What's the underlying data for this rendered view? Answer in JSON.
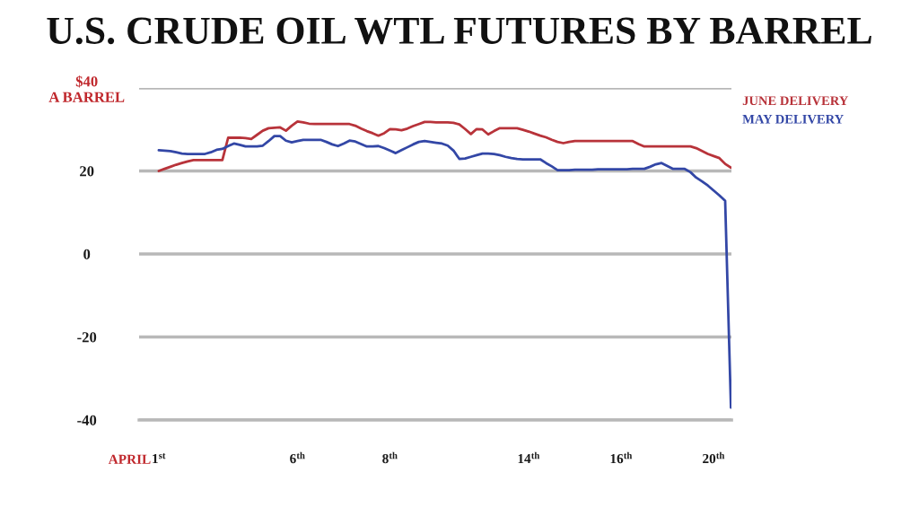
{
  "chart_data": {
    "type": "line",
    "title": "U.S. CRUDE OIL WTL FUTURES BY BARREL",
    "xlabel": "APRIL",
    "categories": [
      "1$^{st}$",
      null,
      null,
      null,
      null,
      null,
      null,
      null,
      null,
      null,
      null,
      null,
      null,
      null,
      null,
      null,
      null,
      null,
      null,
      null,
      null,
      null,
      null,
      null,
      "6$^{th}$",
      null,
      null,
      null,
      null,
      null,
      null,
      null,
      null,
      null,
      null,
      null,
      null,
      null,
      null,
      null,
      "8$^{th}$",
      null,
      null,
      null,
      null,
      null,
      null,
      null,
      null,
      null,
      null,
      null,
      null,
      null,
      null,
      null,
      null,
      null,
      null,
      null,
      null,
      null,
      null,
      null,
      "14$^{th}$",
      null,
      null,
      null,
      null,
      null,
      null,
      null,
      null,
      null,
      null,
      null,
      null,
      null,
      null,
      null,
      "16$^{th}$",
      null,
      null,
      null,
      null,
      null,
      null,
      null,
      null,
      null,
      null,
      null,
      null,
      null,
      null,
      null,
      "20$^{th}$",
      null,
      null,
      null
    ],
    "ylim": [
      -40,
      40
    ],
    "yticks": [
      -40,
      -20,
      0,
      20,
      {
        "value": 40,
        "label": "$40\nA BARREL"
      }
    ],
    "grid": "y",
    "legend": "top right",
    "line_style": "solid",
    "marker": "none",
    "series": [
      {
        "name": "JUNE DELIVERY",
        "color": "#b8333a",
        "values": [
          20.0,
          20.5,
          21.0,
          21.5,
          21.9,
          22.3,
          22.6,
          22.6,
          22.6,
          22.6,
          22.6,
          22.6,
          28.0,
          28.0,
          28.0,
          27.9,
          27.7,
          28.7,
          29.7,
          30.3,
          30.4,
          30.5,
          29.7,
          30.9,
          31.9,
          31.7,
          31.4,
          31.3,
          31.3,
          31.3,
          31.3,
          31.3,
          31.3,
          31.3,
          30.9,
          30.2,
          29.6,
          29.1,
          28.5,
          29.1,
          30.1,
          30.0,
          29.8,
          30.2,
          30.8,
          31.3,
          31.8,
          31.8,
          31.7,
          31.7,
          31.7,
          31.6,
          31.2,
          30.1,
          28.9,
          30.1,
          30.0,
          28.8,
          29.6,
          30.3,
          30.3,
          30.3,
          30.3,
          29.9,
          29.5,
          29.0,
          28.5,
          28.1,
          27.5,
          27.0,
          26.7,
          27.0,
          27.2,
          27.2,
          27.2,
          27.2,
          27.2,
          27.2,
          27.2,
          27.2,
          27.2,
          27.2,
          27.2,
          26.5,
          25.9,
          25.9,
          25.9,
          25.9,
          25.9,
          25.9,
          25.9,
          25.9,
          25.9,
          25.5,
          24.8,
          24.1,
          23.6,
          23.1,
          21.7,
          20.8
        ]
      },
      {
        "name": "MAY DELIVERY",
        "color": "#3347a6",
        "values": [
          25.0,
          24.9,
          24.8,
          24.5,
          24.2,
          24.1,
          24.1,
          24.1,
          24.1,
          24.5,
          25.1,
          25.3,
          26.0,
          26.6,
          26.3,
          25.9,
          25.9,
          25.9,
          26.1,
          27.2,
          28.4,
          28.4,
          27.3,
          26.9,
          27.2,
          27.5,
          27.5,
          27.5,
          27.5,
          27.0,
          26.4,
          26.0,
          26.6,
          27.3,
          27.1,
          26.5,
          25.9,
          25.9,
          26.0,
          25.5,
          24.9,
          24.3,
          25.0,
          25.7,
          26.4,
          27.0,
          27.2,
          27.0,
          26.8,
          26.6,
          26.1,
          24.9,
          22.9,
          23.0,
          23.4,
          23.8,
          24.2,
          24.2,
          24.1,
          23.8,
          23.4,
          23.1,
          22.9,
          22.8,
          22.8,
          22.8,
          22.8,
          21.9,
          21.1,
          20.2,
          20.2,
          20.2,
          20.3,
          20.3,
          20.3,
          20.3,
          20.4,
          20.4,
          20.4,
          20.4,
          20.4,
          20.4,
          20.5,
          20.5,
          20.5,
          21.0,
          21.6,
          21.9,
          21.2,
          20.5,
          20.5,
          20.5,
          19.7,
          18.4,
          17.5,
          16.5,
          15.3,
          14.1,
          12.8,
          -37.0
        ]
      }
    ]
  }
}
